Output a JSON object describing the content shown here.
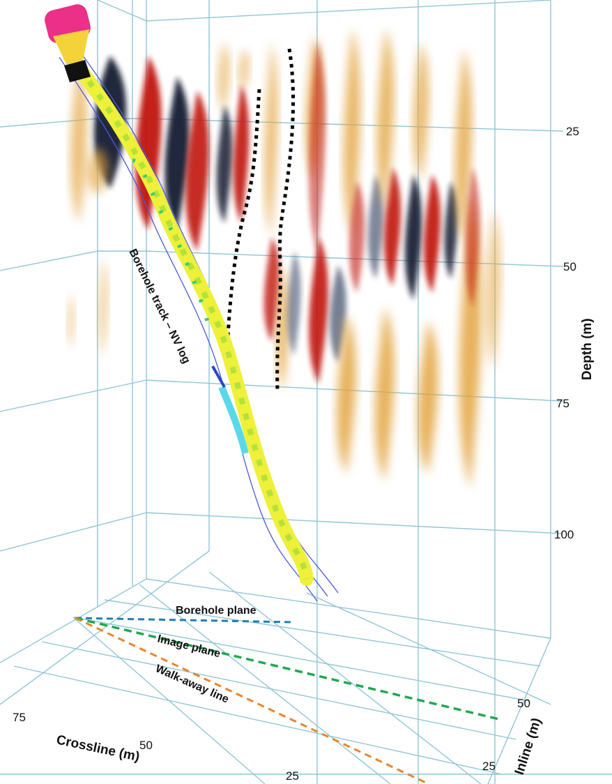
{
  "depth_axis": {
    "title": "Depth (m)",
    "ticks": [
      "25",
      "50",
      "75",
      "100"
    ]
  },
  "crossline_axis": {
    "title": "Crossline (m)",
    "ticks": [
      "75",
      "50",
      "25"
    ]
  },
  "inline_axis": {
    "title": "Inline (m)",
    "ticks": [
      "50",
      "25"
    ]
  },
  "labels": {
    "borehole_track": "Borehole track – NV log",
    "borehole_plane": "Borehole plane",
    "image_plane": "Image plane",
    "walkaway_line": "Walk-away line"
  },
  "colors": {
    "grid": "#8fc6d6",
    "borehole_plane_line": "#1f7fb0",
    "image_plane_line": "#1fa850",
    "walkaway_line": "#e8842a",
    "positive_amplitude": "#c0170f",
    "negative_amplitude": "#141d33",
    "weak_amplitude": "#e3a440",
    "borehole_log": "#e8ec30"
  }
}
